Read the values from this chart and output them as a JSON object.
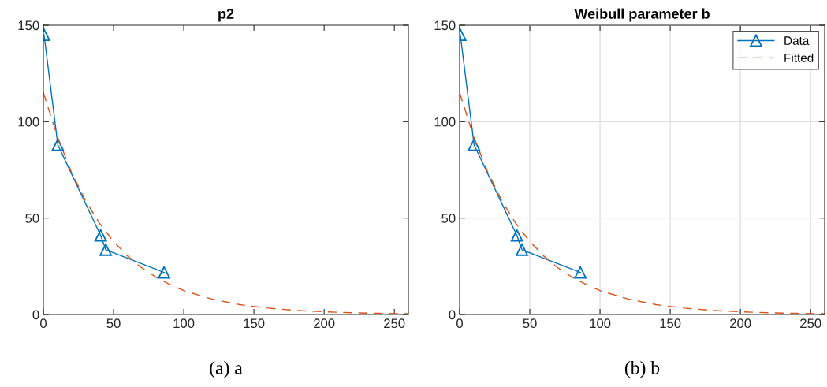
{
  "chart_data": [
    {
      "type": "line",
      "title": "p2",
      "annotations": [
        "(a) a"
      ],
      "xlim": [
        0,
        260
      ],
      "ylim": [
        0,
        150
      ],
      "xticks": [
        0,
        50,
        100,
        150,
        200,
        250
      ],
      "yticks": [
        0,
        50,
        100,
        150
      ],
      "grid": false,
      "series": [
        {
          "color": "#0072bd",
          "marker": "triangle",
          "line_style": "solid",
          "x": [
            0.5,
            10.3,
            40.8,
            44.4,
            86
          ],
          "values": [
            145,
            88,
            41,
            33.6,
            21.8
          ]
        },
        {
          "color": "#d95319",
          "marker": "none",
          "line_style": "dashed",
          "x": [
            0,
            10,
            20,
            30,
            40,
            50,
            60,
            70,
            80,
            90,
            100,
            120,
            140,
            160,
            180,
            200,
            220,
            240,
            260
          ],
          "values": [
            115,
            92.2,
            73.8,
            59,
            47.3,
            37.8,
            30.3,
            24.2,
            19.4,
            15.6,
            12.4,
            8,
            5.1,
            3.3,
            2.1,
            1.4,
            0.9,
            0.6,
            0.4
          ]
        }
      ]
    },
    {
      "type": "line",
      "title": "Weibull parameter b",
      "annotations": [
        "(b) b"
      ],
      "xlim": [
        0,
        260
      ],
      "ylim": [
        0,
        150
      ],
      "xticks": [
        0,
        50,
        100,
        150,
        200,
        250
      ],
      "yticks": [
        0,
        50,
        100,
        150
      ],
      "grid": true,
      "legend": "top right",
      "series": [
        {
          "name": "Data",
          "color": "#0072bd",
          "marker": "triangle",
          "line_style": "solid",
          "x": [
            0.5,
            10.3,
            40.8,
            44.4,
            86
          ],
          "values": [
            145,
            88,
            41,
            33.6,
            21.8
          ]
        },
        {
          "name": "Fitted",
          "color": "#d95319",
          "marker": "none",
          "line_style": "dashed",
          "x": [
            0,
            10,
            20,
            30,
            40,
            50,
            60,
            70,
            80,
            90,
            100,
            120,
            140,
            160,
            180,
            200,
            220,
            240,
            260
          ],
          "values": [
            115,
            92.2,
            73.8,
            59,
            47.3,
            37.8,
            30.3,
            24.2,
            19.4,
            15.6,
            12.4,
            8,
            5.1,
            3.3,
            2.1,
            1.4,
            0.9,
            0.6,
            0.4
          ]
        }
      ]
    }
  ]
}
